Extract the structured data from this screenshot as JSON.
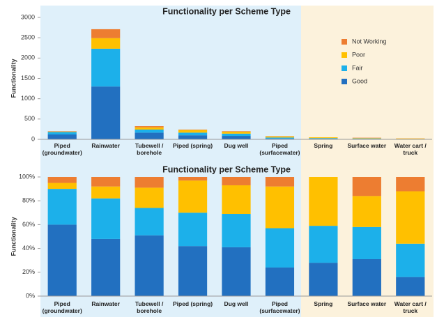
{
  "chart_data": [
    {
      "type": "bar",
      "stacked": true,
      "title": "Functionality per Scheme Type",
      "y_label": "Functionality",
      "categories": [
        "Piped (groundwater)",
        "Rainwater",
        "Tubewell / borehole",
        "Piped (spring)",
        "Dug well",
        "Piped (surfacewater)",
        "Spring",
        "Surface water",
        "Water cart / truck"
      ],
      "series": [
        {
          "name": "Good",
          "color": "#2270c0",
          "values": [
            120,
            1300,
            165,
            100,
            85,
            20,
            15,
            13,
            4
          ]
        },
        {
          "name": "Fair",
          "color": "#1cb0ea",
          "values": [
            60,
            930,
            75,
            65,
            55,
            25,
            15,
            10,
            7
          ]
        },
        {
          "name": "Poor",
          "color": "#ffc000",
          "values": [
            10,
            260,
            55,
            65,
            48,
            28,
            20,
            10,
            11
          ]
        },
        {
          "name": "Not Working",
          "color": "#ed7d31",
          "values": [
            10,
            220,
            30,
            10,
            12,
            7,
            0,
            7,
            3
          ]
        }
      ],
      "ylim": [
        0,
        3000
      ],
      "yticks": [
        0,
        500,
        1000,
        1500,
        2000,
        2500,
        3000
      ],
      "legend": "upper right"
    },
    {
      "type": "bar",
      "stacked": true,
      "title": "Functionality per Scheme Type",
      "y_label": "Functionality",
      "categories": [
        "Piped (groundwater)",
        "Rainwater",
        "Tubewell / borehole",
        "Piped (spring)",
        "Dug well",
        "Piped (surfacewater)",
        "Spring",
        "Surface water",
        "Water cart / truck"
      ],
      "series": [
        {
          "name": "Good",
          "color": "#2270c0",
          "values": [
            60,
            48,
            51,
            42,
            41,
            24,
            28,
            31,
            16
          ]
        },
        {
          "name": "Fair",
          "color": "#1cb0ea",
          "values": [
            30,
            34,
            23,
            28,
            28,
            33,
            31,
            27,
            28
          ]
        },
        {
          "name": "Poor",
          "color": "#ffc000",
          "values": [
            5,
            10,
            17,
            27,
            24,
            35,
            41,
            26,
            44
          ]
        },
        {
          "name": "Not Working",
          "color": "#ed7d31",
          "values": [
            5,
            8,
            9,
            3,
            7,
            8,
            0,
            16,
            12
          ]
        }
      ],
      "ylim": [
        0,
        100
      ],
      "yticks": [
        {
          "value": 0,
          "label": "0%"
        },
        {
          "value": 20,
          "label": "20%"
        },
        {
          "value": 40,
          "label": "40%"
        },
        {
          "value": 60,
          "label": "60%"
        },
        {
          "value": 80,
          "label": "80%"
        },
        {
          "value": 100,
          "label": "100%"
        }
      ]
    }
  ]
}
